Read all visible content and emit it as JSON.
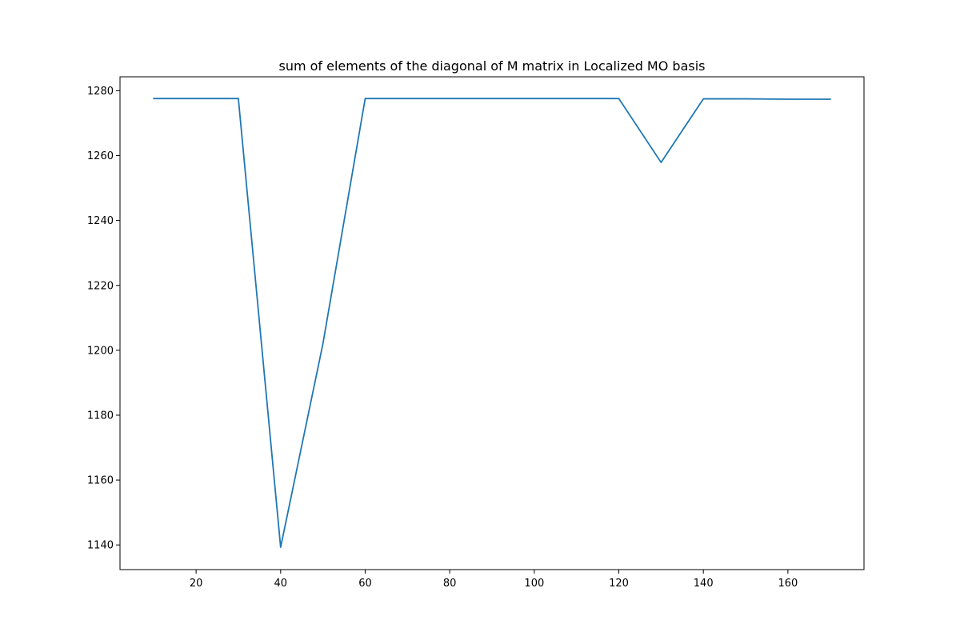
{
  "chart_data": {
    "type": "line",
    "title": "sum of elements of the diagonal of M matrix in Localized MO basis",
    "xlabel": "",
    "ylabel": "",
    "x": [
      10,
      20,
      30,
      40,
      50,
      60,
      70,
      80,
      90,
      100,
      110,
      120,
      130,
      140,
      150,
      160,
      170
    ],
    "series": [
      {
        "values": [
          1277.6,
          1277.6,
          1277.6,
          1139.3,
          1202.0,
          1277.6,
          1277.6,
          1277.6,
          1277.6,
          1277.6,
          1277.6,
          1277.6,
          1257.9,
          1277.5,
          1277.5,
          1277.4,
          1277.4
        ],
        "color": "#1f77b4"
      }
    ],
    "xlim": [
      2,
      178
    ],
    "ylim": [
      1132.4,
      1284.3
    ],
    "xticks": [
      "20",
      "40",
      "60",
      "80",
      "100",
      "120",
      "140",
      "160"
    ],
    "yticks": [
      "1140",
      "1160",
      "1180",
      "1200",
      "1220",
      "1240",
      "1260",
      "1280"
    ],
    "grid": false,
    "legend": "none"
  }
}
